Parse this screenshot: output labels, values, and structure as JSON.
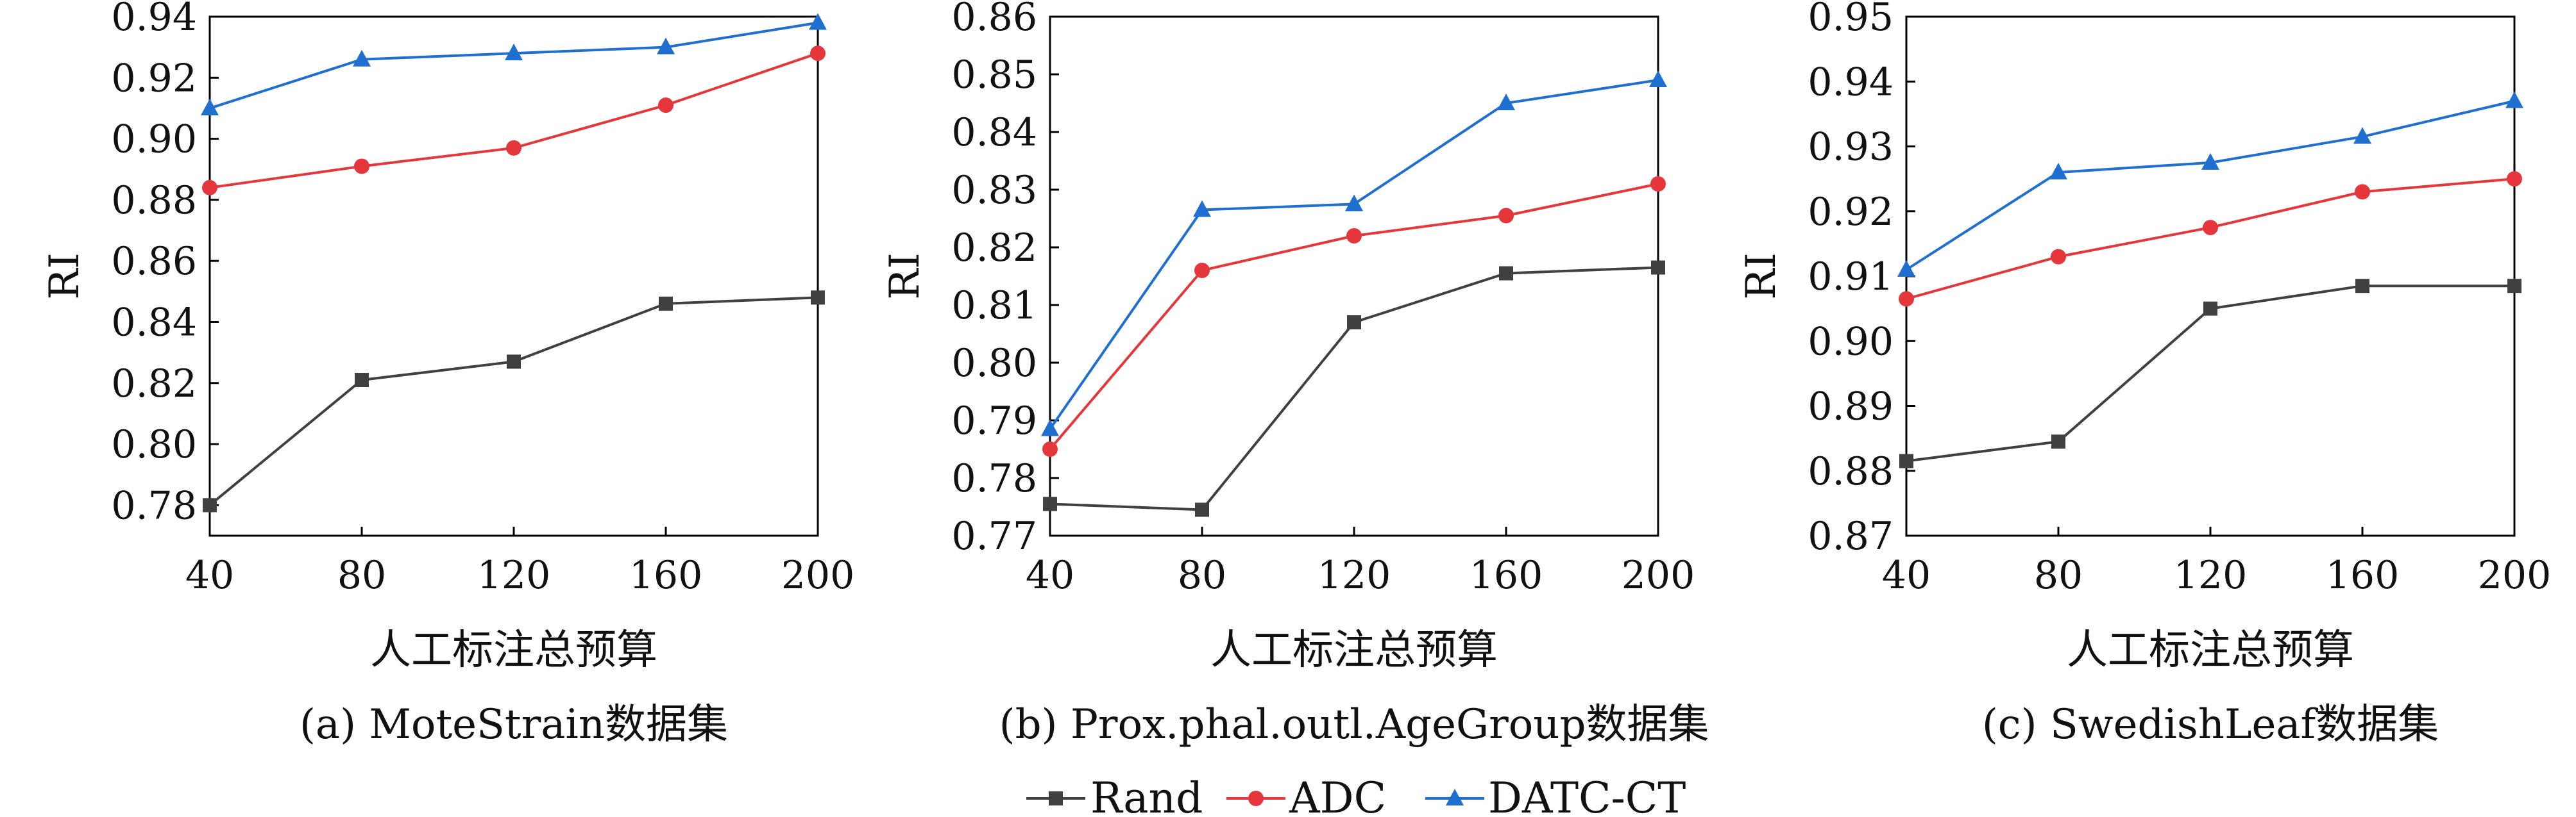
{
  "colors": {
    "Rand": "#404040",
    "ADC": "#e5373b",
    "DATC-CT": "#1f6fd1"
  },
  "legend": [
    {
      "name": "Rand",
      "marker": "square"
    },
    {
      "name": "ADC",
      "marker": "circle"
    },
    {
      "name": "DATC-CT",
      "marker": "triangle"
    }
  ],
  "chart_data": [
    {
      "type": "line",
      "caption": "(a) MoteStrain数据集",
      "xlabel": "人工标注总预算",
      "ylabel": "RI",
      "x": [
        40,
        80,
        120,
        160,
        200
      ],
      "xlim": [
        40,
        200
      ],
      "ylim": [
        0.77,
        0.94
      ],
      "yticks": [
        "0.78",
        "0.80",
        "0.82",
        "0.84",
        "0.86",
        "0.88",
        "0.90",
        "0.92",
        "0.94"
      ],
      "xticks": [
        "40",
        "80",
        "120",
        "160",
        "200"
      ],
      "series": [
        {
          "name": "Rand",
          "values": [
            0.78,
            0.821,
            0.827,
            0.846,
            0.848
          ]
        },
        {
          "name": "ADC",
          "values": [
            0.884,
            0.891,
            0.897,
            0.911,
            0.928
          ]
        },
        {
          "name": "DATC-CT",
          "values": [
            0.91,
            0.926,
            0.928,
            0.93,
            0.938
          ]
        }
      ]
    },
    {
      "type": "line",
      "caption": "(b) Prox.phal.outl.AgeGroup数据集",
      "xlabel": "人工标注总预算",
      "ylabel": "RI",
      "x": [
        40,
        80,
        120,
        160,
        200
      ],
      "xlim": [
        40,
        200
      ],
      "ylim": [
        0.77,
        0.86
      ],
      "yticks": [
        "0.77",
        "0.78",
        "0.79",
        "0.80",
        "0.81",
        "0.82",
        "0.83",
        "0.84",
        "0.85",
        "0.86"
      ],
      "xticks": [
        "40",
        "80",
        "120",
        "160",
        "200"
      ],
      "series": [
        {
          "name": "Rand",
          "values": [
            0.7755,
            0.7745,
            0.807,
            0.8155,
            0.8165
          ]
        },
        {
          "name": "ADC",
          "values": [
            0.785,
            0.816,
            0.822,
            0.8255,
            0.831
          ]
        },
        {
          "name": "DATC-CT",
          "values": [
            0.7885,
            0.8265,
            0.8275,
            0.845,
            0.849
          ]
        }
      ]
    },
    {
      "type": "line",
      "caption": "(c) SwedishLeaf数据集",
      "xlabel": "人工标注总预算",
      "ylabel": "RI",
      "x": [
        40,
        80,
        120,
        160,
        200
      ],
      "xlim": [
        40,
        200
      ],
      "ylim": [
        0.87,
        0.95
      ],
      "yticks": [
        "0.87",
        "0.88",
        "0.89",
        "0.90",
        "0.91",
        "0.92",
        "0.93",
        "0.94",
        "0.95"
      ],
      "xticks": [
        "40",
        "80",
        "120",
        "160",
        "200"
      ],
      "series": [
        {
          "name": "Rand",
          "values": [
            0.8815,
            0.8845,
            0.905,
            0.9085,
            0.9085
          ]
        },
        {
          "name": "ADC",
          "values": [
            0.9065,
            0.913,
            0.9175,
            0.923,
            0.925
          ]
        },
        {
          "name": "DATC-CT",
          "values": [
            0.911,
            0.926,
            0.9275,
            0.9315,
            0.937
          ]
        }
      ]
    }
  ]
}
